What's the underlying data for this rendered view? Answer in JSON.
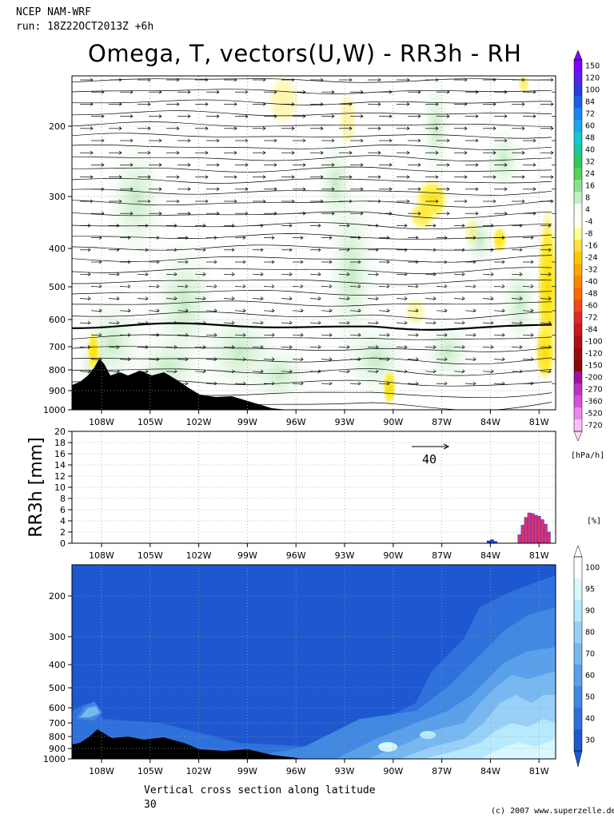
{
  "header": {
    "model": "NCEP NAM-WRF",
    "run": "run: 18Z22OCT2013Z +6h",
    "title": "Omega, T, vectors(U,W) - RR3h - RH"
  },
  "footer": {
    "caption": "Vertical cross section along latitude",
    "latitude": "30",
    "copyright": "(c) 2007 www.superzelle.de"
  },
  "chart_data": [
    {
      "type": "heatmap",
      "panel": "omega",
      "x_ticks": [
        "108W",
        "105W",
        "102W",
        "99W",
        "96W",
        "93W",
        "90W",
        "87W",
        "84W",
        "81W"
      ],
      "x_lon": [
        108,
        105,
        102,
        99,
        96,
        93,
        90,
        87,
        84,
        81
      ],
      "y_ticks": [
        "200",
        "300",
        "400",
        "500",
        "600",
        "700",
        "800",
        "900",
        "1000"
      ],
      "y_pressure": [
        200,
        300,
        400,
        500,
        600,
        700,
        800,
        900,
        1000
      ],
      "vector_reference": "40",
      "units": "[hPa/h]",
      "colorbar_labels": [
        "150",
        "120",
        "100",
        "84",
        "72",
        "60",
        "48",
        "40",
        "32",
        "24",
        "16",
        "8",
        "4",
        "-4",
        "-8",
        "-16",
        "-24",
        "-32",
        "-40",
        "-48",
        "-60",
        "-72",
        "-84",
        "-100",
        "-120",
        "-150",
        "-200",
        "-270",
        "-360",
        "-520",
        "-720"
      ],
      "colorbar_colors": [
        "#7f00ff",
        "#5a1fe8",
        "#2a3adc",
        "#1c5ee8",
        "#1a86f0",
        "#18a8ee",
        "#16c8d0",
        "#18c8a0",
        "#2cc860",
        "#58d058",
        "#8ce08c",
        "#c0f0c0",
        "#f2fff2",
        "#fffff0",
        "#ffff90",
        "#ffe040",
        "#ffc800",
        "#ffa800",
        "#ff8800",
        "#ff6a00",
        "#f04818",
        "#e02828",
        "#c81820",
        "#b01018",
        "#980c10",
        "#880808",
        "#a010a0",
        "#c030c8",
        "#d850d8",
        "#e888e8",
        "#f8c0f8"
      ]
    },
    {
      "type": "bar",
      "panel": "RR3h",
      "ylabel": "RR3h [mm]",
      "y_ticks": [
        "20",
        "18",
        "16",
        "14",
        "12",
        "10",
        "8",
        "6",
        "4",
        "2",
        "0"
      ],
      "ylim": [
        0,
        20
      ],
      "x_ticks": [
        "108W",
        "105W",
        "102W",
        "99W",
        "96W",
        "93W",
        "90W",
        "87W",
        "84W",
        "81W"
      ],
      "lon": [
        84.1,
        83.9,
        83.7,
        82.2,
        82.0,
        81.8,
        81.6,
        81.4,
        81.2,
        81.0,
        80.8,
        80.6,
        80.4
      ],
      "values": [
        0.4,
        0.6,
        0.3,
        1.5,
        3.2,
        4.6,
        5.4,
        5.3,
        5.0,
        4.8,
        4.2,
        3.4,
        2.0
      ],
      "units": "[%]"
    },
    {
      "type": "heatmap",
      "panel": "RH",
      "x_ticks": [
        "108W",
        "105W",
        "102W",
        "99W",
        "96W",
        "93W",
        "90W",
        "87W",
        "84W",
        "81W"
      ],
      "y_ticks": [
        "200",
        "300",
        "400",
        "500",
        "600",
        "700",
        "800",
        "900",
        "1000"
      ],
      "colorbar_labels": [
        "100",
        "95",
        "90",
        "80",
        "70",
        "60",
        "50",
        "40",
        "30"
      ],
      "colorbar_colors": [
        "#ffffff",
        "#d8f8ff",
        "#b8eaff",
        "#98d0f8",
        "#78b8f0",
        "#5aa0ea",
        "#4088e2",
        "#2e70dc",
        "#1e58d0"
      ]
    }
  ]
}
